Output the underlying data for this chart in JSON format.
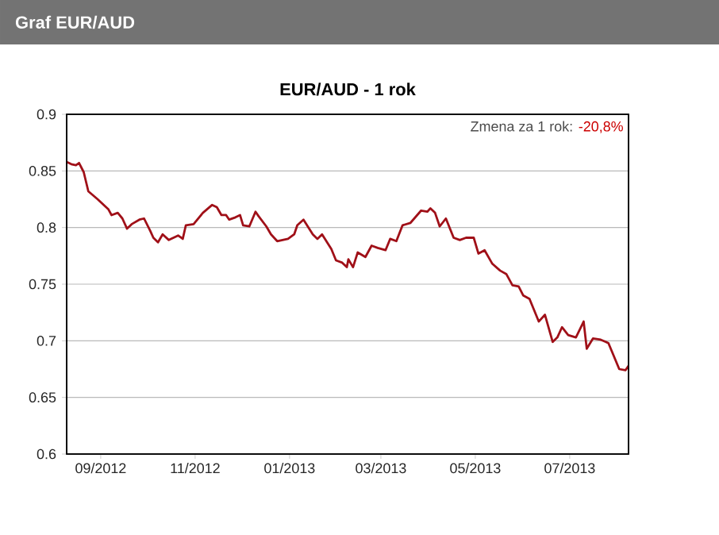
{
  "chart_data": {
    "type": "line",
    "title": "Graf EUR/AUD",
    "subtitle": "EUR/AUD - 1 rok",
    "annotations": [
      "Zmena za 1 rok:",
      "-20,8%"
    ],
    "x": [
      "2012-08-10",
      "2012-08-13",
      "2012-08-16",
      "2012-08-18",
      "2012-08-21",
      "2012-08-24",
      "2012-08-30",
      "2012-09-06",
      "2012-09-08",
      "2012-09-12",
      "2012-09-15",
      "2012-09-18",
      "2012-09-21",
      "2012-09-26",
      "2012-09-29",
      "2012-10-03",
      "2012-10-05",
      "2012-10-08",
      "2012-10-11",
      "2012-10-15",
      "2012-10-21",
      "2012-10-24",
      "2012-10-26",
      "2012-10-31",
      "2012-11-06",
      "2012-11-12",
      "2012-11-15",
      "2012-11-18",
      "2012-11-21",
      "2012-11-23",
      "2012-11-27",
      "2012-11-30",
      "2012-12-02",
      "2012-12-06",
      "2012-12-10",
      "2012-12-12",
      "2012-12-17",
      "2012-12-20",
      "2012-12-24",
      "2012-12-31",
      "2013-01-04",
      "2013-01-06",
      "2013-01-10",
      "2013-01-16",
      "2013-01-19",
      "2013-01-22",
      "2013-01-28",
      "2013-01-31",
      "2013-02-04",
      "2013-02-07",
      "2013-02-08",
      "2013-02-11",
      "2013-02-14",
      "2013-02-19",
      "2013-02-23",
      "2013-02-27",
      "2013-03-04",
      "2013-03-07",
      "2013-03-11",
      "2013-03-15",
      "2013-03-20",
      "2013-03-27",
      "2013-03-31",
      "2013-04-02",
      "2013-04-05",
      "2013-04-08",
      "2013-04-12",
      "2013-04-17",
      "2013-04-21",
      "2013-04-25",
      "2013-04-30",
      "2013-05-03",
      "2013-05-07",
      "2013-05-12",
      "2013-05-17",
      "2013-05-21",
      "2013-05-25",
      "2013-05-29",
      "2013-06-01",
      "2013-06-05",
      "2013-06-11",
      "2013-06-15",
      "2013-06-20",
      "2013-06-23",
      "2013-06-26",
      "2013-06-30",
      "2013-07-05",
      "2013-07-10",
      "2013-07-12",
      "2013-07-16",
      "2013-07-21",
      "2013-07-26",
      "2013-08-02",
      "2013-08-06",
      "2013-08-08"
    ],
    "series": [
      {
        "color": "#a01018",
        "values": [
          0.858,
          0.856,
          0.855,
          0.857,
          0.849,
          0.832,
          0.825,
          0.816,
          0.811,
          0.813,
          0.808,
          0.799,
          0.803,
          0.807,
          0.808,
          0.797,
          0.791,
          0.787,
          0.794,
          0.789,
          0.793,
          0.79,
          0.802,
          0.803,
          0.813,
          0.82,
          0.818,
          0.811,
          0.811,
          0.807,
          0.809,
          0.811,
          0.802,
          0.801,
          0.814,
          0.81,
          0.801,
          0.794,
          0.788,
          0.79,
          0.794,
          0.802,
          0.807,
          0.794,
          0.79,
          0.794,
          0.781,
          0.771,
          0.769,
          0.765,
          0.772,
          0.765,
          0.778,
          0.774,
          0.784,
          0.782,
          0.78,
          0.79,
          0.788,
          0.802,
          0.804,
          0.815,
          0.814,
          0.817,
          0.813,
          0.801,
          0.808,
          0.791,
          0.789,
          0.791,
          0.791,
          0.777,
          0.78,
          0.768,
          0.762,
          0.759,
          0.749,
          0.748,
          0.74,
          0.737,
          0.717,
          0.723,
          0.699,
          0.703,
          0.712,
          0.705,
          0.703,
          0.717,
          0.693,
          0.702,
          0.701,
          0.698,
          0.675,
          0.674,
          0.678
        ]
      }
    ],
    "xlim": [
      "2012-08-10",
      "2013-08-08"
    ],
    "xticks": [
      {
        "value": "2012-09-01",
        "label": "09/2012"
      },
      {
        "value": "2012-11-01",
        "label": "11/2012"
      },
      {
        "value": "2013-01-01",
        "label": "01/2013"
      },
      {
        "value": "2013-03-01",
        "label": "03/2013"
      },
      {
        "value": "2013-05-01",
        "label": "05/2013"
      },
      {
        "value": "2013-07-01",
        "label": "07/2013"
      }
    ],
    "ylim": [
      0.6,
      0.9
    ],
    "yticks": [
      0.6,
      0.65,
      0.7,
      0.75,
      0.8,
      0.85,
      0.9
    ],
    "grid": "y",
    "marker": "none",
    "line_style": "solid"
  }
}
